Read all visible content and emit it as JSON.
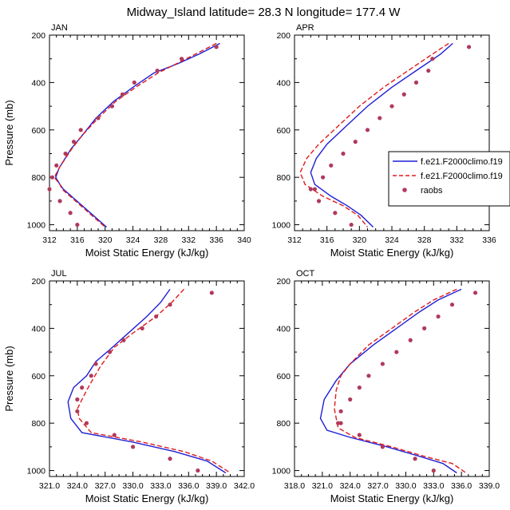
{
  "figure": {
    "title": "Midway_Island  latitude= 28.3 N longitude= 177.4 W"
  },
  "legend": {
    "entries": [
      {
        "label": "f.e21.F2000climo.f19",
        "style": "solid",
        "color": "#1f1fd6"
      },
      {
        "label": "f.e21.F2000climo.f19",
        "style": "dashed",
        "color": "#e01b1b"
      },
      {
        "label": "raobs",
        "style": "dot",
        "color": "#b03a5b"
      }
    ]
  },
  "chart_data": [
    {
      "type": "line",
      "title": "JAN",
      "xlabel": "Moist Static Energy (kJ/kg)",
      "ylabel": "Pressure (mb)",
      "xlim": [
        312,
        340
      ],
      "ylim": [
        1025,
        200
      ],
      "xticks": [
        "312",
        "316",
        "320",
        "324",
        "328",
        "332",
        "336",
        "340"
      ],
      "yticks": [
        "200",
        "400",
        "600",
        "800",
        "1000"
      ],
      "series": [
        {
          "style": "solid",
          "color": "#1f1fd6",
          "x": [
            336.5,
            333.5,
            330.5,
            327.0,
            324.0,
            321.2,
            318.7,
            316.8,
            315.1,
            313.4,
            312.9,
            313.5,
            314.0,
            320.2
          ],
          "y": [
            235,
            280,
            320,
            360,
            420,
            480,
            550,
            620,
            680,
            760,
            800,
            830,
            850,
            1010
          ]
        },
        {
          "style": "dashed",
          "color": "#e01b1b",
          "x": [
            336.0,
            333.0,
            330.3,
            327.6,
            324.4,
            321.5,
            319.0,
            316.8,
            315.2,
            313.4,
            312.7,
            313.5,
            313.8,
            320.0
          ],
          "y": [
            235,
            280,
            320,
            360,
            420,
            480,
            550,
            620,
            680,
            760,
            800,
            830,
            850,
            1010
          ]
        },
        {
          "style": "dot",
          "color": "#b03a5b",
          "x": [
            336.0,
            331.0,
            327.5,
            324.2,
            322.5,
            321.0,
            319.0,
            316.5,
            315.5,
            314.3,
            313.0,
            312.4,
            312.0,
            313.5,
            315.0,
            316.0
          ],
          "y": [
            250,
            300,
            350,
            400,
            450,
            500,
            550,
            600,
            650,
            700,
            750,
            800,
            850,
            900,
            950,
            1000
          ]
        }
      ]
    },
    {
      "type": "line",
      "title": "APR",
      "xlabel": "Moist Static Energy (kJ/kg)",
      "ylabel": "",
      "xlim": [
        312,
        336
      ],
      "ylim": [
        1025,
        200
      ],
      "xticks": [
        "312",
        "316",
        "320",
        "324",
        "328",
        "332",
        "336"
      ],
      "yticks": [
        "200",
        "400",
        "600",
        "800",
        "1000"
      ],
      "series": [
        {
          "style": "solid",
          "color": "#1f1fd6",
          "x": [
            331.5,
            330.0,
            327.0,
            324.0,
            321.0,
            318.5,
            316.0,
            314.7,
            314.0,
            314.5,
            316.5,
            318.5,
            320.2,
            321.7
          ],
          "y": [
            235,
            280,
            350,
            420,
            500,
            580,
            660,
            720,
            780,
            830,
            880,
            920,
            960,
            1010
          ]
        },
        {
          "style": "dashed",
          "color": "#e01b1b",
          "x": [
            331.0,
            329.0,
            326.0,
            323.0,
            320.0,
            317.5,
            315.0,
            313.5,
            312.7,
            313.3,
            315.5,
            318.0,
            319.8,
            321.0
          ],
          "y": [
            235,
            280,
            350,
            420,
            500,
            580,
            660,
            720,
            780,
            830,
            880,
            920,
            960,
            1010
          ]
        },
        {
          "style": "dot",
          "color": "#b03a5b",
          "x": [
            333.5,
            329.0,
            328.5,
            327.0,
            325.5,
            324.0,
            322.5,
            321.0,
            319.5,
            318.0,
            316.5,
            315.5,
            314.5,
            314.0,
            315.0,
            317.0,
            319.0
          ],
          "y": [
            250,
            300,
            350,
            400,
            450,
            500,
            550,
            600,
            650,
            700,
            750,
            800,
            850,
            850,
            900,
            950,
            1000
          ]
        }
      ]
    },
    {
      "type": "line",
      "title": "JUL",
      "xlabel": "Moist Static Energy (kJ/kg)",
      "ylabel": "Pressure (mb)",
      "xlim": [
        321,
        342
      ],
      "ylim": [
        1025,
        200
      ],
      "xticks": [
        "321.0",
        "324.0",
        "327.0",
        "330.0",
        "333.0",
        "336.0",
        "339.0",
        "342.0"
      ],
      "yticks": [
        "200",
        "400",
        "600",
        "800",
        "1000"
      ],
      "series": [
        {
          "style": "solid",
          "color": "#1f1fd6",
          "x": [
            334.0,
            333.0,
            331.5,
            329.5,
            327.5,
            326.0,
            325.0,
            323.6,
            323.0,
            323.3,
            324.5,
            330.0,
            334.5,
            338.0,
            340.0
          ],
          "y": [
            235,
            290,
            350,
            420,
            490,
            540,
            600,
            650,
            710,
            780,
            840,
            880,
            920,
            960,
            1010
          ]
        },
        {
          "style": "dashed",
          "color": "#e01b1b",
          "x": [
            335.5,
            334.2,
            332.5,
            330.0,
            328.0,
            326.5,
            325.3,
            324.5,
            324.0,
            324.2,
            325.5,
            331.0,
            335.5,
            338.5,
            340.5
          ],
          "y": [
            235,
            290,
            350,
            420,
            480,
            560,
            640,
            700,
            740,
            780,
            840,
            880,
            920,
            960,
            1010
          ]
        },
        {
          "style": "dot",
          "color": "#b03a5b",
          "x": [
            338.5,
            334.0,
            332.5,
            331.0,
            329.0,
            327.5,
            326.0,
            325.5,
            324.5,
            324.0,
            324.0,
            325.0,
            328.0,
            330.0,
            334.0,
            337.0
          ],
          "y": [
            250,
            300,
            350,
            400,
            450,
            500,
            550,
            600,
            650,
            700,
            750,
            800,
            850,
            900,
            950,
            1000
          ]
        }
      ]
    },
    {
      "type": "line",
      "title": "OCT",
      "xlabel": "Moist Static Energy (kJ/kg)",
      "ylabel": "",
      "xlim": [
        318,
        339
      ],
      "ylim": [
        1025,
        200
      ],
      "xticks": [
        "318.0",
        "321.0",
        "324.0",
        "327.0",
        "330.0",
        "333.0",
        "336.0",
        "339.0"
      ],
      "yticks": [
        "200",
        "400",
        "600",
        "800",
        "1000"
      ],
      "series": [
        {
          "style": "solid",
          "color": "#1f1fd6",
          "x": [
            336.0,
            333.5,
            331.5,
            329.0,
            326.5,
            324.0,
            322.5,
            321.2,
            320.8,
            321.5,
            324.0,
            328.0,
            331.5,
            334.0,
            335.5
          ],
          "y": [
            235,
            280,
            330,
            400,
            470,
            550,
            620,
            700,
            780,
            830,
            860,
            900,
            940,
            970,
            1010
          ]
        },
        {
          "style": "dashed",
          "color": "#e01b1b",
          "x": [
            335.5,
            333.0,
            331.0,
            328.5,
            326.0,
            324.0,
            323.0,
            322.5,
            322.3,
            322.7,
            324.5,
            328.5,
            332.0,
            335.0,
            336.5
          ],
          "y": [
            235,
            280,
            330,
            400,
            470,
            550,
            600,
            660,
            740,
            820,
            860,
            900,
            940,
            970,
            1010
          ]
        },
        {
          "style": "dot",
          "color": "#b03a5b",
          "x": [
            337.5,
            335.0,
            333.5,
            332.0,
            330.5,
            329.0,
            327.5,
            326.0,
            325.0,
            324.0,
            323.0,
            322.7,
            323.0,
            325.0,
            327.5,
            331.0,
            333.0
          ],
          "y": [
            250,
            300,
            350,
            400,
            450,
            500,
            550,
            600,
            650,
            700,
            750,
            800,
            800,
            850,
            900,
            950,
            1000
          ]
        }
      ]
    }
  ]
}
